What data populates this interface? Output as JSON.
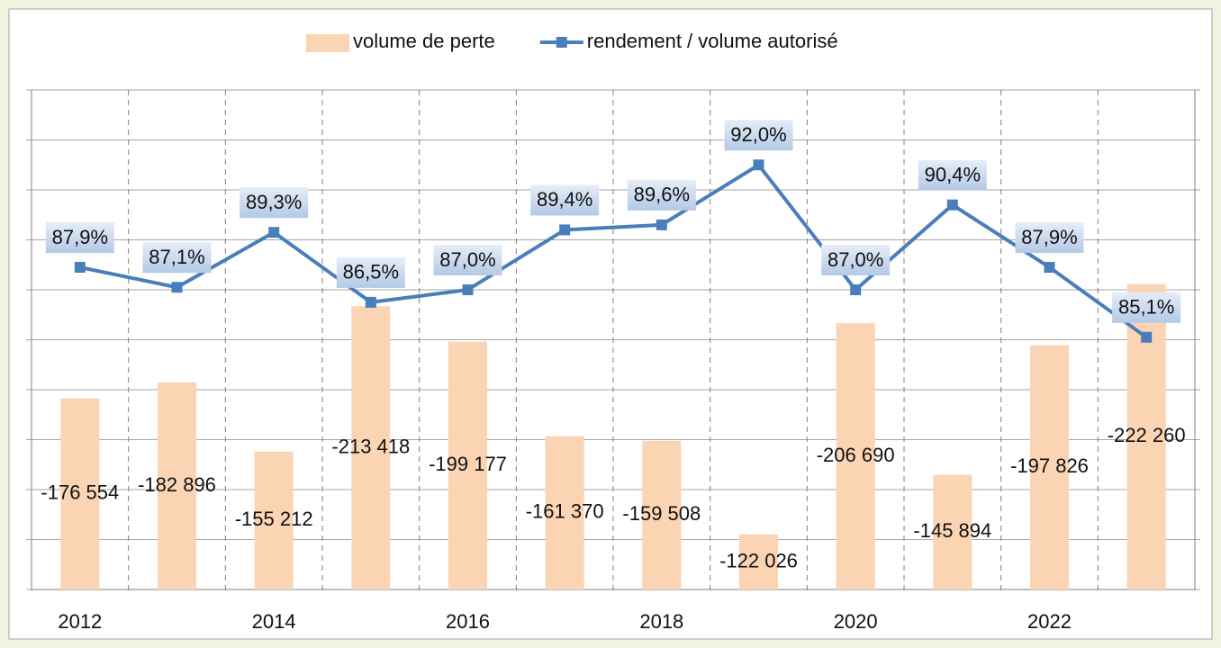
{
  "chart_data": {
    "type": "bar_line",
    "categories": [
      "2012",
      null,
      "2014",
      null,
      "2016",
      null,
      "2018",
      null,
      "2020",
      null,
      "2022",
      null
    ],
    "series": [
      {
        "name": "volume de perte",
        "type": "bar",
        "color": "#fbd4b4",
        "axis": "y",
        "values": [
          -176554,
          -182896,
          -155212,
          -213418,
          -199177,
          -161370,
          -159508,
          -122026,
          -206690,
          -145894,
          -197826,
          -222260
        ],
        "value_labels": [
          "-176 554",
          "-182 896",
          "-155 212",
          "-213 418",
          "-199 177",
          "-161 370",
          "-159 508",
          "-122 026",
          "-206 690",
          "-145 894",
          "-197 826",
          "-222 260"
        ]
      },
      {
        "name": "rendement / volume autorisé",
        "type": "line",
        "color": "#4a7ebb",
        "axis": "y2",
        "values": [
          87.9,
          87.1,
          89.3,
          86.5,
          87.0,
          89.4,
          89.6,
          92.0,
          87.0,
          90.4,
          87.9,
          85.1
        ],
        "value_labels": [
          "87,9%",
          "87,1%",
          "89,3%",
          "86,5%",
          "87,0%",
          "89,4%",
          "89,6%",
          "92,0%",
          "87,0%",
          "90,4%",
          "87,9%",
          "85,1%"
        ]
      }
    ],
    "ylim": [
      -100000,
      -300000
    ],
    "yticks": [
      -100000,
      -120000,
      -140000,
      -160000,
      -180000,
      -200000,
      -220000,
      -240000,
      -260000,
      -280000,
      -300000
    ],
    "y2lim": [
      75,
      95
    ],
    "y2ticks": [
      75,
      77,
      79,
      81,
      83,
      85,
      87,
      89,
      91,
      93,
      95
    ],
    "tick_labels_shown": false,
    "grid": true,
    "legend": "top"
  }
}
